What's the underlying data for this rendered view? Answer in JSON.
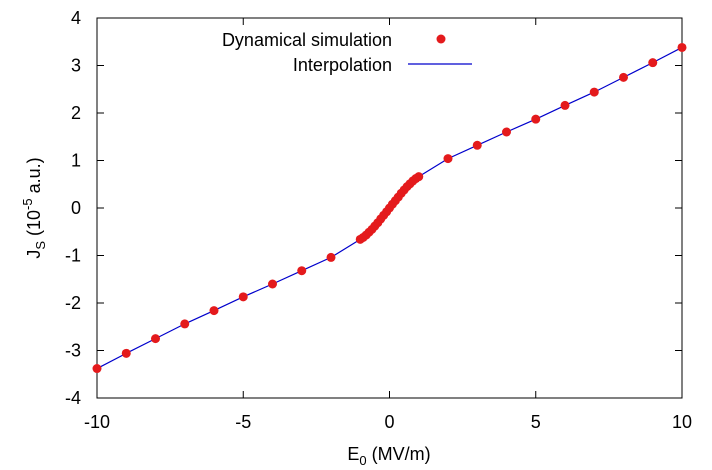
{
  "chart_data": {
    "type": "scatter",
    "title": "",
    "x_range": [
      -10,
      10
    ],
    "y_range": [
      -4,
      4
    ],
    "grid": false,
    "legend_position": "top-right",
    "xlabel": {
      "base": "E",
      "subscript": "0",
      "rest": " (MV/m)"
    },
    "ylabel": {
      "base": "J",
      "subscript": "S",
      "mid": " (10",
      "superscript": "-5",
      "rest": " a.u.)"
    },
    "x_ticks": [
      {
        "value": -10,
        "label": "-10"
      },
      {
        "value": -5,
        "label": "-5"
      },
      {
        "value": 0,
        "label": "0"
      },
      {
        "value": 5,
        "label": "5"
      },
      {
        "value": 10,
        "label": "10"
      }
    ],
    "y_ticks": [
      {
        "value": -4,
        "label": "-4"
      },
      {
        "value": -3,
        "label": "-3"
      },
      {
        "value": -2,
        "label": "-2"
      },
      {
        "value": -1,
        "label": "-1"
      },
      {
        "value": 0,
        "label": "0"
      },
      {
        "value": 1,
        "label": "1"
      },
      {
        "value": 2,
        "label": "2"
      },
      {
        "value": 3,
        "label": "3"
      },
      {
        "value": 4,
        "label": "4"
      }
    ],
    "series": [
      {
        "name": "Dynamical simulation",
        "kind": "points",
        "color": "#e41a1c",
        "x": [
          -10,
          -9,
          -8,
          -7,
          -6,
          -5,
          -4,
          -3,
          -2,
          -1,
          -0.9,
          -0.8,
          -0.7,
          -0.6,
          -0.5,
          -0.4,
          -0.3,
          -0.2,
          -0.1,
          0,
          0.1,
          0.2,
          0.3,
          0.4,
          0.5,
          0.6,
          0.7,
          0.8,
          0.9,
          1,
          2,
          3,
          4,
          5,
          6,
          7,
          8,
          9,
          10
        ],
        "y": [
          -3.38,
          -3.06,
          -2.75,
          -2.44,
          -2.16,
          -1.87,
          -1.6,
          -1.32,
          -1.04,
          -0.66,
          -0.62,
          -0.57,
          -0.51,
          -0.45,
          -0.38,
          -0.31,
          -0.23,
          -0.155,
          -0.08,
          0.0,
          0.08,
          0.155,
          0.23,
          0.31,
          0.38,
          0.45,
          0.51,
          0.57,
          0.62,
          0.66,
          1.04,
          1.32,
          1.6,
          1.87,
          2.16,
          2.44,
          2.75,
          3.06,
          3.38
        ]
      },
      {
        "name": "Interpolation",
        "kind": "line",
        "color": "#0000cc",
        "x": [
          -10,
          -9,
          -8,
          -7,
          -6,
          -5,
          -4,
          -3,
          -2,
          -1,
          -0.9,
          -0.8,
          -0.7,
          -0.6,
          -0.5,
          -0.4,
          -0.3,
          -0.2,
          -0.1,
          0,
          0.1,
          0.2,
          0.3,
          0.4,
          0.5,
          0.6,
          0.7,
          0.8,
          0.9,
          1,
          2,
          3,
          4,
          5,
          6,
          7,
          8,
          9,
          10
        ],
        "y": [
          -3.38,
          -3.06,
          -2.75,
          -2.44,
          -2.16,
          -1.87,
          -1.6,
          -1.32,
          -1.04,
          -0.66,
          -0.62,
          -0.57,
          -0.51,
          -0.45,
          -0.38,
          -0.31,
          -0.23,
          -0.155,
          -0.08,
          0.0,
          0.08,
          0.155,
          0.23,
          0.31,
          0.38,
          0.45,
          0.51,
          0.57,
          0.62,
          0.66,
          1.04,
          1.32,
          1.6,
          1.87,
          2.16,
          2.44,
          2.75,
          3.06,
          3.38
        ]
      }
    ]
  }
}
